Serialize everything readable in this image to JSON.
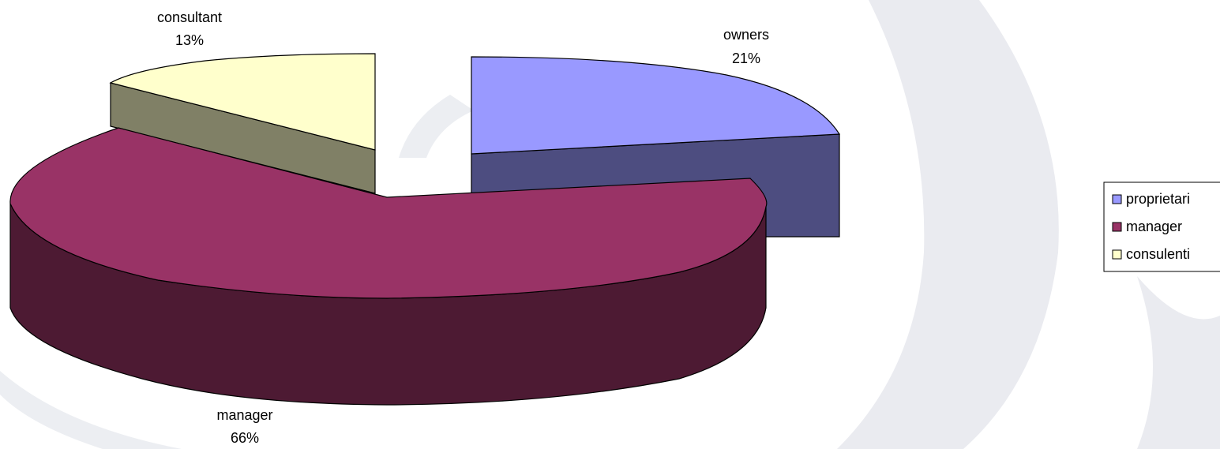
{
  "chart_data": {
    "type": "pie",
    "style": "3d-exploded",
    "slices": [
      {
        "key": "owners",
        "label": "owners",
        "pct_label": "21%",
        "value": 21,
        "color": "#9999ff",
        "side_color": "#4d4d80"
      },
      {
        "key": "manager",
        "label": "manager",
        "pct_label": "66%",
        "value": 66,
        "color": "#993366",
        "side_color": "#4d1a33"
      },
      {
        "key": "consultant",
        "label": "consultant",
        "pct_label": "13%",
        "value": 13,
        "color": "#ffffcc",
        "side_color": "#808066"
      }
    ],
    "legend": {
      "position": "right",
      "items": [
        {
          "label": "proprietari",
          "color": "#9999ff"
        },
        {
          "label": "manager",
          "color": "#993366"
        },
        {
          "label": "consulenti",
          "color": "#ffffcc"
        }
      ]
    },
    "background_colors": {
      "page": "#ffffff",
      "swirl": "#e7e8ee"
    }
  }
}
